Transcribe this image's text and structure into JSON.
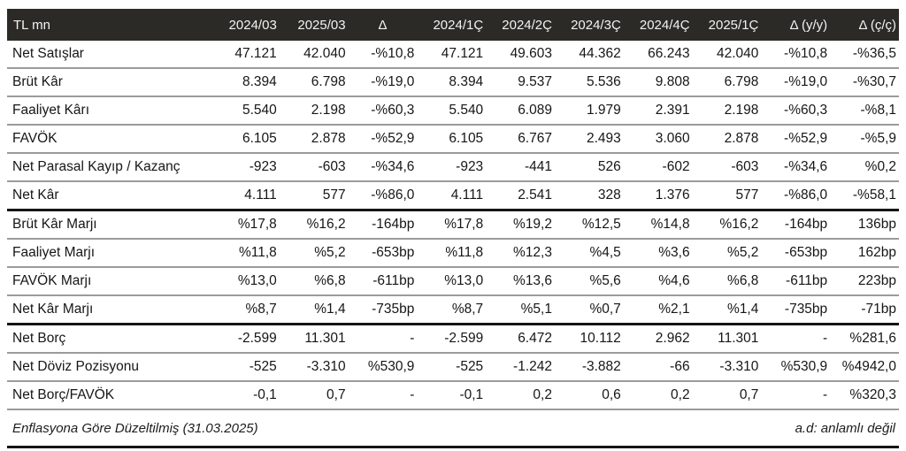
{
  "table": {
    "unit_label": "TL mn",
    "columns": [
      "TL mn",
      "2024/03",
      "2025/03",
      "Δ",
      "2024/1Ç",
      "2024/2Ç",
      "2024/3Ç",
      "2024/4Ç",
      "2025/1Ç",
      "Δ (y/y)",
      "Δ (ç/ç)"
    ],
    "sections": [
      {
        "name": "profit-loss",
        "rows": [
          {
            "label": "Net Satışlar",
            "values": [
              "47.121",
              "42.040",
              "-%10,8",
              "47.121",
              "49.603",
              "44.362",
              "66.243",
              "42.040",
              "-%10,8",
              "-%36,5"
            ]
          },
          {
            "label": "Brüt Kâr",
            "values": [
              "8.394",
              "6.798",
              "-%19,0",
              "8.394",
              "9.537",
              "5.536",
              "9.808",
              "6.798",
              "-%19,0",
              "-%30,7"
            ]
          },
          {
            "label": "Faaliyet Kârı",
            "values": [
              "5.540",
              "2.198",
              "-%60,3",
              "5.540",
              "6.089",
              "1.979",
              "2.391",
              "2.198",
              "-%60,3",
              "-%8,1"
            ]
          },
          {
            "label": "FAVÖK",
            "values": [
              "6.105",
              "2.878",
              "-%52,9",
              "6.105",
              "6.767",
              "2.493",
              "3.060",
              "2.878",
              "-%52,9",
              "-%5,9"
            ]
          },
          {
            "label": "Net Parasal Kayıp / Kazanç",
            "values": [
              "-923",
              "-603",
              "-%34,6",
              "-923",
              "-441",
              "526",
              "-602",
              "-603",
              "-%34,6",
              "%0,2"
            ]
          },
          {
            "label": "Net Kâr",
            "values": [
              "4.111",
              "577",
              "-%86,0",
              "4.111",
              "2.541",
              "328",
              "1.376",
              "577",
              "-%86,0",
              "-%58,1"
            ]
          }
        ]
      },
      {
        "name": "margins",
        "rows": [
          {
            "label": "Brüt Kâr Marjı",
            "values": [
              "%17,8",
              "%16,2",
              "-164bp",
              "%17,8",
              "%19,2",
              "%12,5",
              "%14,8",
              "%16,2",
              "-164bp",
              "136bp"
            ]
          },
          {
            "label": "Faaliyet Marjı",
            "values": [
              "%11,8",
              "%5,2",
              "-653bp",
              "%11,8",
              "%12,3",
              "%4,5",
              "%3,6",
              "%5,2",
              "-653bp",
              "162bp"
            ]
          },
          {
            "label": "FAVÖK Marjı",
            "values": [
              "%13,0",
              "%6,8",
              "-611bp",
              "%13,0",
              "%13,6",
              "%5,6",
              "%4,6",
              "%6,8",
              "-611bp",
              "223bp"
            ]
          },
          {
            "label": "Net Kâr Marjı",
            "values": [
              "%8,7",
              "%1,4",
              "-735bp",
              "%8,7",
              "%5,1",
              "%0,7",
              "%2,1",
              "%1,4",
              "-735bp",
              "-71bp"
            ]
          }
        ]
      },
      {
        "name": "debt",
        "rows": [
          {
            "label": "Net Borç",
            "values": [
              "-2.599",
              "11.301",
              "-",
              "-2.599",
              "6.472",
              "10.112",
              "2.962",
              "11.301",
              "-",
              "%281,6"
            ]
          },
          {
            "label": "Net Döviz Pozisyonu",
            "values": [
              "-525",
              "-3.310",
              "%530,9",
              "-525",
              "-1.242",
              "-3.882",
              "-66",
              "-3.310",
              "%530,9",
              "%4942,0"
            ]
          },
          {
            "label": "Net Borç/FAVÖK",
            "values": [
              "-0,1",
              "0,7",
              "-",
              "-0,1",
              "0,2",
              "0,6",
              "0,2",
              "0,7",
              "-",
              "%320,3"
            ]
          }
        ]
      }
    ]
  },
  "footer": {
    "note_left": "Enflasyona Göre Düzeltilmiş (31.03.2025)",
    "note_right": "a.d: anlamlı değil"
  },
  "colors": {
    "header_bg": "#2b2a27",
    "header_text": "#f4f3f1",
    "body_text": "#161616",
    "row_divider": "#9b9b9b",
    "section_divider": "#151515"
  }
}
